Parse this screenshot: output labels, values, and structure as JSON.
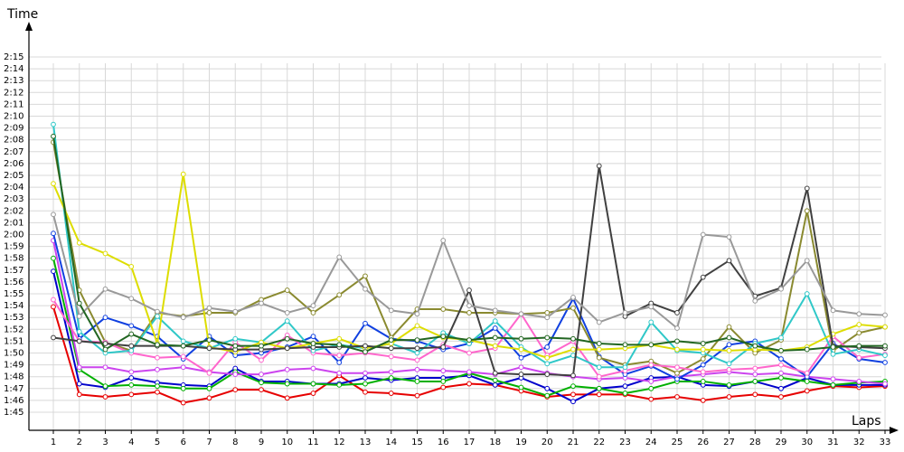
{
  "chart_data": {
    "type": "line",
    "xlabel": "Laps",
    "ylabel": "Time",
    "x": [
      1,
      2,
      3,
      4,
      5,
      6,
      7,
      8,
      9,
      10,
      11,
      12,
      13,
      14,
      15,
      16,
      17,
      18,
      19,
      20,
      21,
      22,
      23,
      24,
      25,
      26,
      27,
      28,
      29,
      30,
      31,
      32,
      33
    ],
    "x_tick_labels": [
      "1",
      "2",
      "3",
      "4",
      "5",
      "6",
      "7",
      "8",
      "9",
      "10",
      "11",
      "12",
      "13",
      "14",
      "15",
      "16",
      "17",
      "18",
      "19",
      "20",
      "21",
      "22",
      "23",
      "24",
      "25",
      "26",
      "27",
      "28",
      "29",
      "30",
      "31",
      "32",
      "33"
    ],
    "y_tick_labels": [
      "1:45",
      "1:46",
      "1:47",
      "1:48",
      "1:49",
      "1:50",
      "1:51",
      "1:52",
      "1:53",
      "1:54",
      "1:55",
      "1:56",
      "1:57",
      "1:58",
      "1:59",
      "2:00",
      "2:01",
      "2:02",
      "2:03",
      "2:04",
      "2:05",
      "2:06",
      "2:07",
      "2:08",
      "2:09",
      "2:10",
      "2:11",
      "2:12",
      "2:13",
      "2:14",
      "2:15"
    ],
    "y_unit": "seconds",
    "ylim": [
      103.5,
      137
    ],
    "grid": true,
    "legend": "none",
    "series": [
      {
        "color": "#e60000",
        "values": [
          113.9,
          106.5,
          106.3,
          106.5,
          106.7,
          105.8,
          106.2,
          106.9,
          106.9,
          106.2,
          106.6,
          108.1,
          106.7,
          106.6,
          106.4,
          107.1,
          107.4,
          107.3,
          106.8,
          106.3,
          106.5,
          106.5,
          106.5,
          106.1,
          106.3,
          106.0,
          106.3,
          106.5,
          106.3,
          106.8,
          107.2,
          107.1,
          107.2
        ]
      },
      {
        "color": "#0000cc",
        "values": [
          116.9,
          107.4,
          107.1,
          107.9,
          107.5,
          107.3,
          107.2,
          108.7,
          107.6,
          107.6,
          107.4,
          107.4,
          107.9,
          107.7,
          107.9,
          107.9,
          108.1,
          107.3,
          107.9,
          107.0,
          105.9,
          107.0,
          107.2,
          107.9,
          108.0,
          107.3,
          107.2,
          107.6,
          107.0,
          107.9,
          107.3,
          107.3,
          107.3
        ]
      },
      {
        "color": "#00b000",
        "values": [
          118.0,
          108.6,
          107.2,
          107.3,
          107.2,
          107.0,
          107.0,
          108.4,
          107.5,
          107.4,
          107.4,
          107.3,
          107.4,
          107.9,
          107.6,
          107.6,
          108.3,
          107.7,
          107.1,
          106.4,
          107.2,
          107.0,
          106.6,
          107.0,
          107.6,
          107.6,
          107.3,
          107.6,
          107.9,
          107.6,
          107.3,
          107.5,
          107.6
        ]
      },
      {
        "color": "#cc44ee",
        "values": [
          119.5,
          108.8,
          108.8,
          108.4,
          108.6,
          108.8,
          108.4,
          108.2,
          108.2,
          108.6,
          108.7,
          108.3,
          108.3,
          108.4,
          108.6,
          108.5,
          108.4,
          108.2,
          108.8,
          108.3,
          108.0,
          107.8,
          107.9,
          107.6,
          108.0,
          108.2,
          108.4,
          108.2,
          108.3,
          108.0,
          107.8,
          107.6,
          107.4
        ]
      },
      {
        "color": "#1040e0",
        "values": [
          120.1,
          111.2,
          113.0,
          112.3,
          111.4,
          109.5,
          111.4,
          109.8,
          110.0,
          110.5,
          111.4,
          109.2,
          112.5,
          111.2,
          111.0,
          110.3,
          110.8,
          112.1,
          109.6,
          110.5,
          114.6,
          109.7,
          108.2,
          108.9,
          107.8,
          109.0,
          110.7,
          111.0,
          109.5,
          108.0,
          110.8,
          109.5,
          109.2
        ]
      },
      {
        "color": "#8a8a30",
        "values": [
          127.8,
          115.3,
          110.9,
          110.2,
          113.4,
          113.1,
          113.4,
          113.4,
          114.5,
          115.3,
          113.4,
          114.9,
          116.5,
          111.3,
          113.7,
          113.7,
          113.4,
          113.4,
          113.3,
          113.4,
          113.8,
          109.6,
          109.0,
          109.3,
          108.3,
          109.5,
          112.2,
          110.0,
          111.1,
          122.0,
          110.2,
          111.7,
          112.2
        ]
      },
      {
        "color": "#ff66cc",
        "values": [
          114.5,
          111.0,
          110.9,
          110.0,
          109.6,
          109.7,
          108.3,
          110.9,
          109.4,
          111.5,
          110.0,
          109.8,
          110.0,
          109.7,
          109.4,
          110.7,
          110.0,
          110.4,
          113.3,
          109.8,
          111.0,
          108.0,
          108.5,
          109.0,
          108.8,
          108.4,
          108.6,
          108.7,
          109.0,
          108.3,
          111.4,
          109.6,
          109.9
        ]
      },
      {
        "color": "#30c8c8",
        "values": [
          129.3,
          111.8,
          110.0,
          110.2,
          113.1,
          111.0,
          110.4,
          111.2,
          110.9,
          112.7,
          110.2,
          110.7,
          110.4,
          110.8,
          110.0,
          111.7,
          110.8,
          112.7,
          110.5,
          109.1,
          109.8,
          108.8,
          108.8,
          112.6,
          110.2,
          110.0,
          109.1,
          110.8,
          111.3,
          115.0,
          109.9,
          110.3,
          109.8
        ]
      },
      {
        "color": "#dddd00",
        "values": [
          124.3,
          119.3,
          118.4,
          117.3,
          110.8,
          125.1,
          110.5,
          110.1,
          110.9,
          110.4,
          110.8,
          111.2,
          110.4,
          110.8,
          112.3,
          111.3,
          111.1,
          110.6,
          110.3,
          109.6,
          110.3,
          110.3,
          110.4,
          110.7,
          110.3,
          110.3,
          110.2,
          110.3,
          110.2,
          110.5,
          111.6,
          112.4,
          112.2
        ]
      },
      {
        "color": "#404040",
        "values": [
          111.3,
          111.0,
          110.8,
          110.6,
          110.6,
          110.6,
          110.4,
          110.3,
          110.3,
          110.4,
          110.5,
          110.5,
          110.6,
          110.4,
          110.4,
          110.5,
          115.3,
          108.3,
          108.2,
          108.2,
          108.1,
          125.8,
          113.1,
          114.2,
          113.4,
          116.4,
          117.8,
          114.8,
          115.5,
          123.9,
          110.6,
          110.5,
          110.4
        ]
      },
      {
        "color": "#999999",
        "values": [
          121.7,
          113.1,
          115.4,
          114.6,
          113.5,
          113.0,
          113.8,
          113.5,
          114.2,
          113.4,
          114.0,
          118.1,
          115.4,
          113.6,
          113.3,
          119.5,
          114.0,
          113.6,
          113.3,
          113.0,
          114.7,
          112.6,
          113.4,
          113.9,
          112.1,
          120.0,
          119.8,
          114.4,
          115.4,
          117.8,
          113.6,
          113.3,
          113.2
        ]
      },
      {
        "color": "#226622",
        "values": [
          128.3,
          114.2,
          110.3,
          111.6,
          110.7,
          110.6,
          111.1,
          110.6,
          110.6,
          111.2,
          110.8,
          110.7,
          110.1,
          111.1,
          111.1,
          111.4,
          111.1,
          111.3,
          111.2,
          111.3,
          111.2,
          110.8,
          110.7,
          110.7,
          111.0,
          110.8,
          111.3,
          110.6,
          110.2,
          110.3,
          110.5,
          110.6,
          110.6
        ]
      }
    ]
  }
}
